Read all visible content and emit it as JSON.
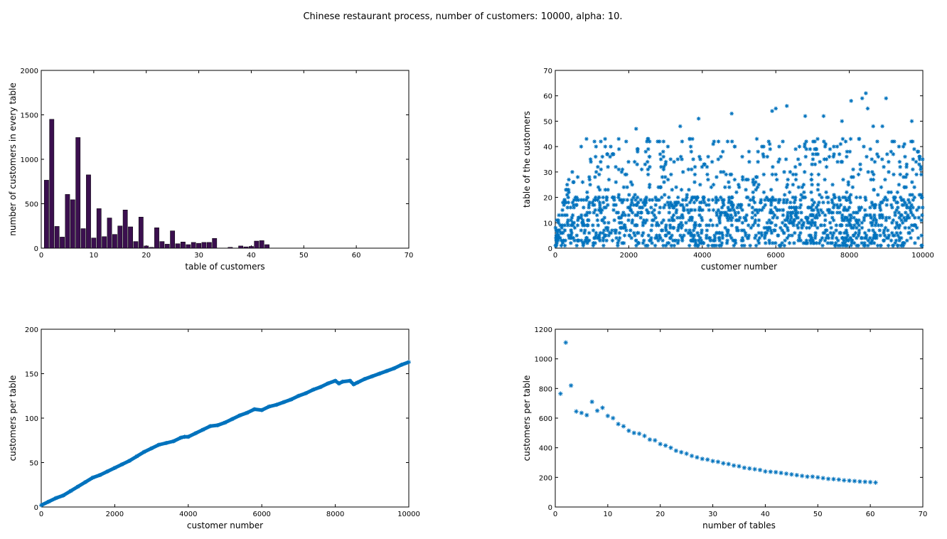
{
  "figure_title": "Chinese restaurant process, number of customers: 10000, alpha: 10.",
  "colors": {
    "bar": "#3b0f4f",
    "marker": "#0072bd",
    "axis": "#000000",
    "background": "#ffffff"
  },
  "chart_data": [
    {
      "type": "bar",
      "xlabel": "table of customers",
      "ylabel": "number of customers in every table",
      "xlim": [
        0,
        70
      ],
      "ylim": [
        0,
        2000
      ],
      "xticks": [
        0,
        10,
        20,
        30,
        40,
        50,
        60,
        70
      ],
      "yticks": [
        0,
        500,
        1000,
        1500,
        2000
      ],
      "grid": false,
      "x": [
        1,
        2,
        3,
        4,
        5,
        6,
        7,
        8,
        9,
        10,
        11,
        12,
        13,
        14,
        15,
        16,
        17,
        18,
        19,
        20,
        21,
        22,
        23,
        24,
        25,
        26,
        27,
        28,
        29,
        30,
        31,
        32,
        33,
        34,
        35,
        36,
        37,
        38,
        39,
        40,
        41,
        42,
        43
      ],
      "values": [
        765,
        1450,
        245,
        125,
        605,
        545,
        1245,
        220,
        825,
        115,
        445,
        130,
        340,
        155,
        250,
        430,
        240,
        75,
        350,
        25,
        10,
        230,
        75,
        45,
        195,
        50,
        70,
        40,
        65,
        55,
        65,
        65,
        110,
        0,
        0,
        10,
        0,
        25,
        15,
        20,
        80,
        85,
        40
      ]
    },
    {
      "type": "scatter",
      "marker": "*",
      "xlabel": "customer number",
      "ylabel": "table of the customers",
      "xlim": [
        0,
        10000
      ],
      "ylim": [
        0,
        70
      ],
      "xticks": [
        0,
        2000,
        4000,
        6000,
        8000,
        10000
      ],
      "yticks": [
        0,
        10,
        20,
        30,
        40,
        50,
        60,
        70
      ],
      "grid": false,
      "points_sampled": 1600,
      "note_outliers": [
        [
          2200,
          47
        ],
        [
          3400,
          48
        ],
        [
          3900,
          51
        ],
        [
          4800,
          53
        ],
        [
          5900,
          54
        ],
        [
          6000,
          55
        ],
        [
          6300,
          56
        ],
        [
          6800,
          52
        ],
        [
          7300,
          52
        ],
        [
          7800,
          50
        ],
        [
          8050,
          58
        ],
        [
          8350,
          59
        ],
        [
          8450,
          61
        ],
        [
          8500,
          55
        ],
        [
          8650,
          48
        ],
        [
          8900,
          48
        ],
        [
          9000,
          59
        ],
        [
          9700,
          50
        ]
      ]
    },
    {
      "type": "line",
      "marker": "*",
      "xlabel": "customer number",
      "ylabel": "customers per table",
      "xlim": [
        0,
        10000
      ],
      "ylim": [
        0,
        200
      ],
      "xticks": [
        0,
        2000,
        4000,
        6000,
        8000,
        10000
      ],
      "yticks": [
        0,
        50,
        100,
        150,
        200
      ],
      "grid": false,
      "x": [
        0,
        200,
        400,
        600,
        800,
        1000,
        1200,
        1400,
        1600,
        1800,
        2000,
        2200,
        2400,
        2600,
        2800,
        3000,
        3200,
        3400,
        3600,
        3800,
        3900,
        4000,
        4200,
        4400,
        4600,
        4800,
        5000,
        5200,
        5400,
        5600,
        5800,
        6000,
        6200,
        6400,
        6600,
        6800,
        7000,
        7200,
        7400,
        7600,
        7800,
        8000,
        8100,
        8200,
        8400,
        8500,
        8600,
        8800,
        9000,
        9200,
        9400,
        9600,
        9800,
        10000
      ],
      "y": [
        2,
        6,
        10,
        13,
        18,
        23,
        28,
        33,
        36,
        40,
        44,
        48,
        52,
        57,
        62,
        66,
        70,
        72,
        74,
        78,
        79,
        79,
        83,
        87,
        91,
        92,
        95,
        99,
        103,
        106,
        110,
        109,
        113,
        115,
        118,
        121,
        125,
        128,
        132,
        135,
        139,
        142,
        139,
        141,
        142,
        138,
        140,
        144,
        147,
        150,
        153,
        156,
        160,
        163
      ]
    },
    {
      "type": "scatter",
      "marker": "*",
      "xlabel": "number of tables",
      "ylabel": "customers per table",
      "xlim": [
        0,
        70
      ],
      "ylim": [
        0,
        1200
      ],
      "xticks": [
        0,
        10,
        20,
        30,
        40,
        50,
        60,
        70
      ],
      "yticks": [
        0,
        200,
        400,
        600,
        800,
        1000,
        1200
      ],
      "grid": false,
      "x": [
        1,
        2,
        3,
        4,
        5,
        6,
        7,
        8,
        9,
        10,
        11,
        12,
        13,
        14,
        15,
        16,
        17,
        18,
        19,
        20,
        21,
        22,
        23,
        24,
        25,
        26,
        27,
        28,
        29,
        30,
        31,
        32,
        33,
        34,
        35,
        36,
        37,
        38,
        39,
        40,
        41,
        42,
        43,
        44,
        45,
        46,
        47,
        48,
        49,
        50,
        51,
        52,
        53,
        54,
        55,
        56,
        57,
        58,
        59,
        60,
        61
      ],
      "y": [
        765,
        1110,
        820,
        645,
        635,
        620,
        710,
        650,
        670,
        615,
        600,
        560,
        545,
        515,
        500,
        495,
        480,
        455,
        450,
        425,
        415,
        400,
        380,
        370,
        360,
        345,
        335,
        325,
        320,
        310,
        305,
        295,
        290,
        280,
        275,
        265,
        260,
        255,
        250,
        240,
        238,
        235,
        230,
        225,
        220,
        215,
        210,
        205,
        205,
        200,
        195,
        190,
        188,
        185,
        180,
        178,
        175,
        172,
        170,
        168,
        165
      ]
    }
  ]
}
